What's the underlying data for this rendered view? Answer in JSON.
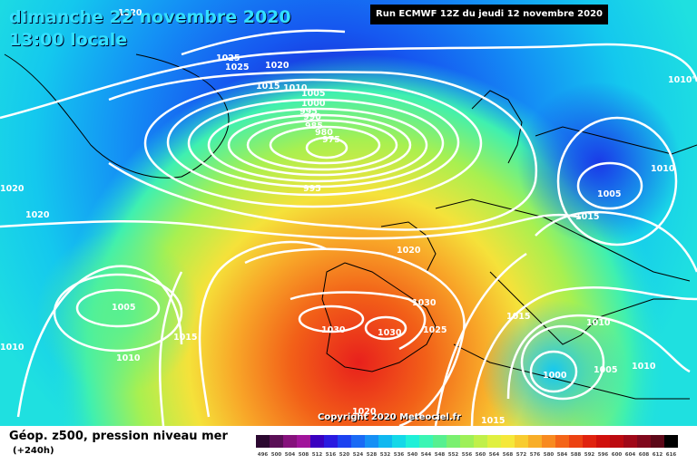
{
  "header": {
    "date_line": "dimanche 22 novembre 2020",
    "time_line": "13:00 locale",
    "run_label": "Run ECMWF 12Z du jeudi 12 novembre 2020"
  },
  "footer": {
    "title": "Géop. z500, pression niveau mer",
    "lead": "(+240h)",
    "copyright": "Copyright 2020 Meteociel.fr"
  },
  "scale": {
    "labels": [
      "496",
      "500",
      "504",
      "508",
      "512",
      "516",
      "520",
      "524",
      "528",
      "532",
      "536",
      "540",
      "544",
      "548",
      "552",
      "556",
      "560",
      "564",
      "568",
      "572",
      "576",
      "580",
      "584",
      "588",
      "592",
      "596",
      "600",
      "604",
      "608",
      "612",
      "616"
    ],
    "colors": [
      "#2b0830",
      "#5a0f56",
      "#86117c",
      "#a0149a",
      "#3a00c0",
      "#2a1ae0",
      "#1d42f0",
      "#1a6af5",
      "#1690f5",
      "#10b8f0",
      "#14d8e8",
      "#1ff0d8",
      "#3bf5b4",
      "#57f090",
      "#7af070",
      "#9ef058",
      "#c0f04a",
      "#e0f040",
      "#f5e83a",
      "#f8cc30",
      "#f8ae28",
      "#f88a20",
      "#f46418",
      "#ec4212",
      "#e0220e",
      "#d0100c",
      "#bc0a10",
      "#a00818",
      "#80081c",
      "#5c0818",
      "#000000"
    ]
  },
  "pressure_labels": [
    "1020",
    "1025",
    "1025",
    "1020",
    "1015",
    "1010",
    "1005",
    "1000",
    "995",
    "990",
    "985",
    "980",
    "975",
    "995",
    "1020",
    "1020",
    "1015",
    "1005",
    "1010",
    "1015",
    "1010",
    "1005",
    "1010",
    "1015",
    "1020",
    "1030",
    "1030",
    "1030",
    "1025",
    "1010",
    "1005",
    "1000",
    "1010",
    "1020",
    "1015",
    "1010'"
  ]
}
